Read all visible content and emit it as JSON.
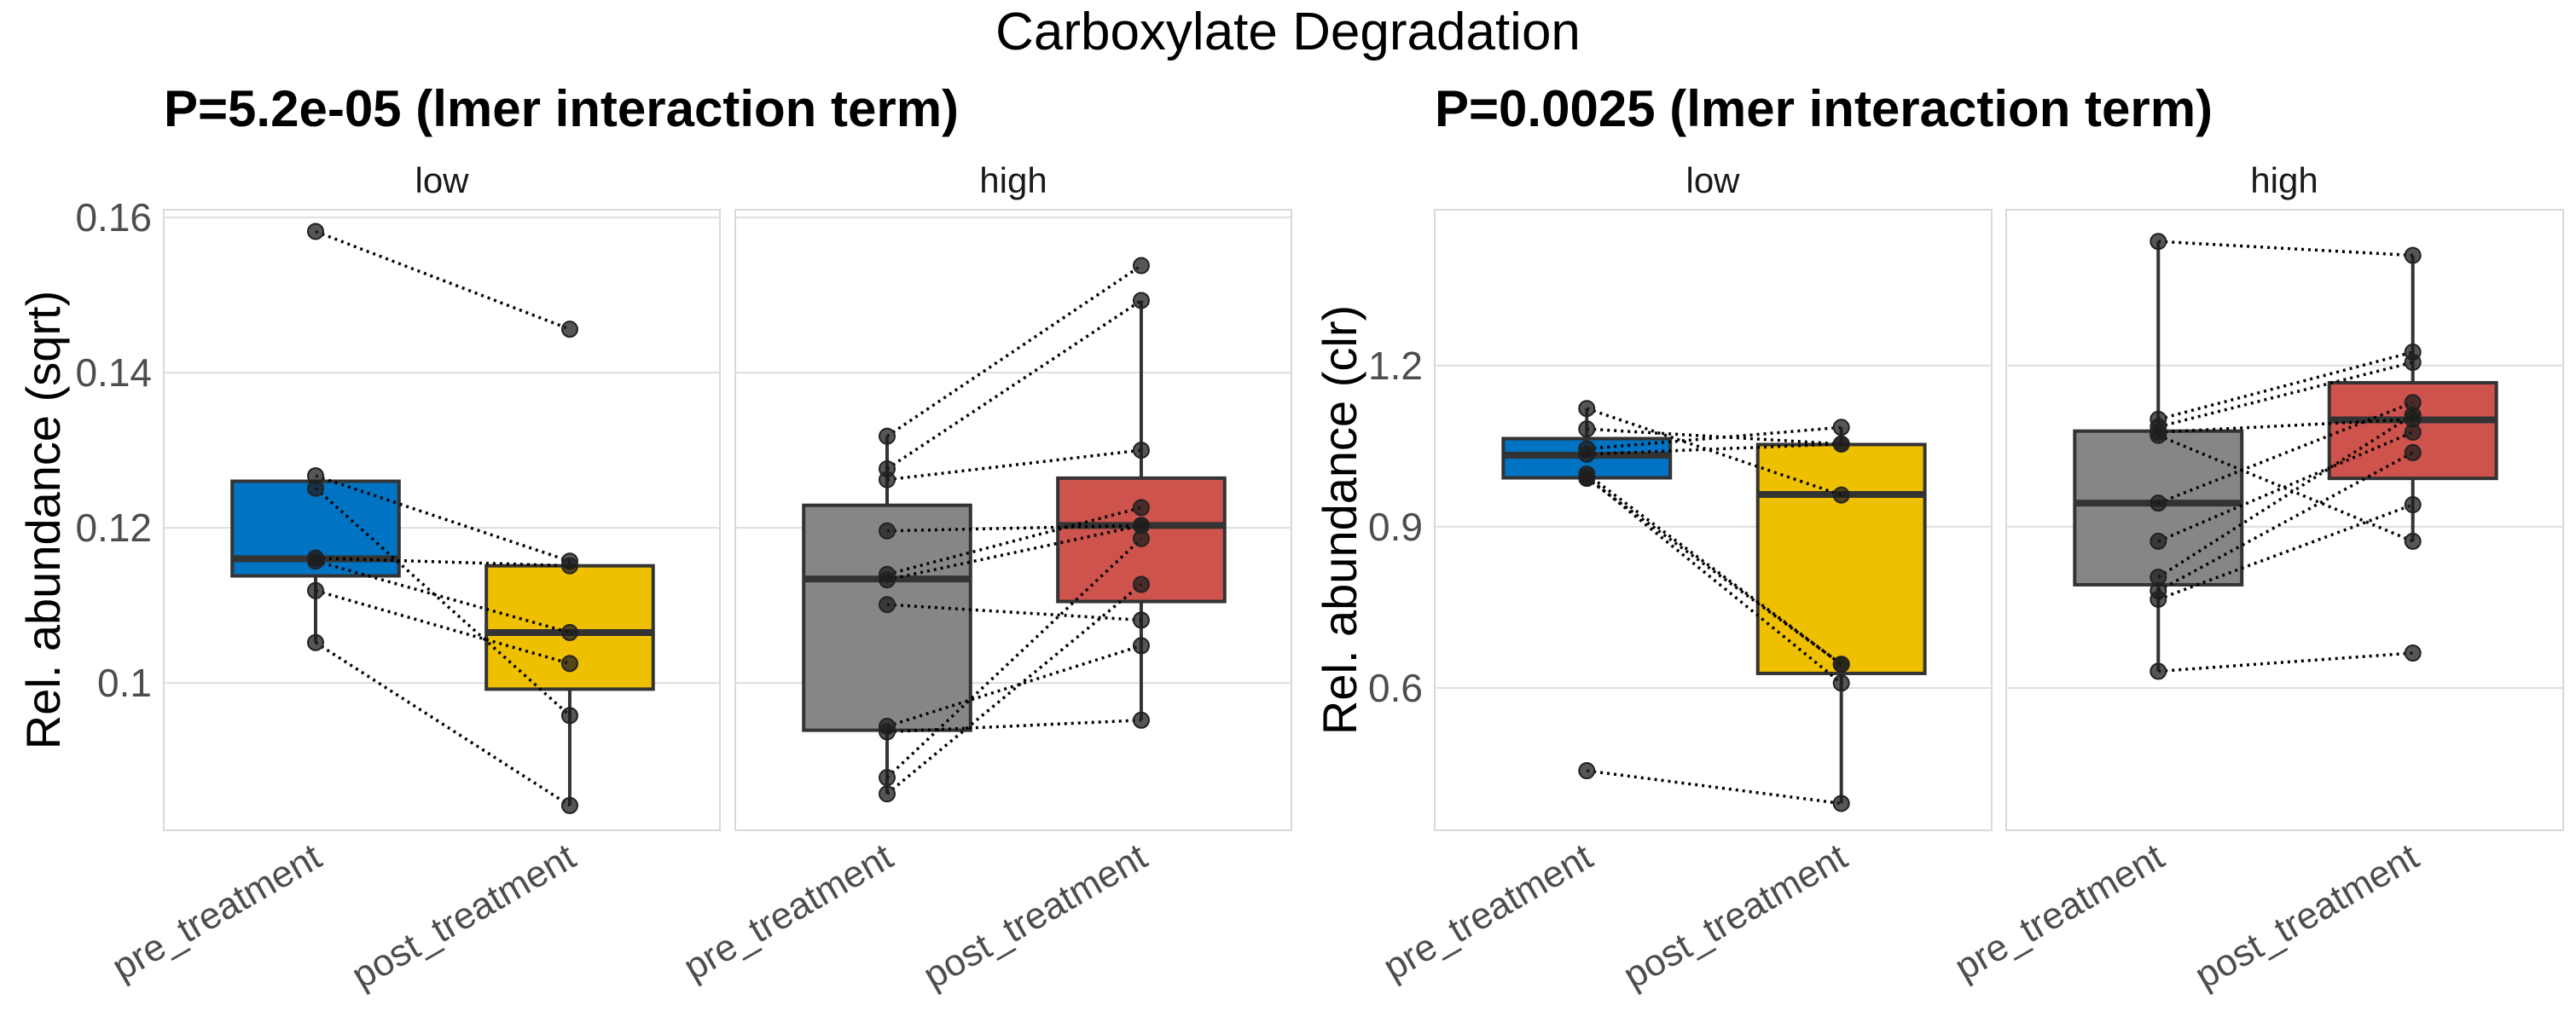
{
  "chart_data": {
    "title": "Carboxylate Degradation",
    "charts": [
      {
        "type": "box",
        "subtitle": "P=5.2e-05 (lmer interaction term)",
        "ylabel": "Rel. abundance (sqrt)",
        "ylim": [
          0.081,
          0.161
        ],
        "yticks": [
          0.16,
          0.14,
          0.12,
          0.1
        ],
        "ytick_labels": [
          "0.16",
          "0.14",
          "0.12",
          "0.1"
        ],
        "grid": true,
        "facets": [
          {
            "label": "low",
            "categories": [
              "pre_treatment",
              "post_treatment"
            ],
            "colors": [
              "#0073C2",
              "#EFC000"
            ],
            "boxes": [
              {
                "q1": 0.1138,
                "median": 0.116,
                "q3": 0.126,
                "whisker_low": 0.1052,
                "whisker_high": 0.126
              },
              {
                "q1": 0.0992,
                "median": 0.1065,
                "q3": 0.1151,
                "whisker_low": 0.0842,
                "whisker_high": 0.1157
              }
            ],
            "pairs": [
              [
                0.1582,
                0.1456
              ],
              [
                0.1267,
                0.1157
              ],
              [
                0.1251,
                0.0958
              ],
              [
                0.1161,
                0.1151
              ],
              [
                0.1157,
                0.1065
              ],
              [
                0.1119,
                0.1025
              ],
              [
                0.1052,
                0.0842
              ]
            ]
          },
          {
            "label": "high",
            "categories": [
              "pre_treatment",
              "post_treatment"
            ],
            "colors": [
              "#868686",
              "#CD534C"
            ],
            "boxes": [
              {
                "q1": 0.0939,
                "median": 0.1134,
                "q3": 0.1229,
                "whisker_low": 0.0857,
                "whisker_high": 0.1318
              },
              {
                "q1": 0.1105,
                "median": 0.1203,
                "q3": 0.1264,
                "whisker_low": 0.0952,
                "whisker_high": 0.1493
              }
            ],
            "pairs": [
              [
                0.1318,
                0.1538
              ],
              [
                0.1276,
                0.1493
              ],
              [
                0.1262,
                0.13
              ],
              [
                0.1196,
                0.1203
              ],
              [
                0.114,
                0.1226
              ],
              [
                0.1133,
                0.1203
              ],
              [
                0.1101,
                0.1081
              ],
              [
                0.0944,
                0.1048
              ],
              [
                0.0937,
                0.0952
              ],
              [
                0.0878,
                0.1186
              ],
              [
                0.0857,
                0.1127
              ]
            ]
          }
        ]
      },
      {
        "type": "box",
        "subtitle": "P=0.0025 (lmer interaction term)",
        "ylabel": "Rel. abundance (clr)",
        "ylim": [
          0.335,
          1.49
        ],
        "yticks": [
          1.2,
          0.9,
          0.6
        ],
        "ytick_labels": [
          "1.2",
          "0.9",
          "0.6"
        ],
        "grid": true,
        "facets": [
          {
            "label": "low",
            "categories": [
              "pre_treatment",
              "post_treatment"
            ],
            "colors": [
              "#0073C2",
              "#EFC000"
            ],
            "boxes": [
              {
                "q1": 0.991,
                "median": 1.033,
                "q3": 1.064,
                "whisker_low": 0.99,
                "whisker_high": 1.12
              },
              {
                "q1": 0.627,
                "median": 0.96,
                "q3": 1.053,
                "whisker_low": 0.385,
                "whisker_high": 1.085
              }
            ],
            "pairs": [
              [
                1.12,
                0.959
              ],
              [
                1.082,
                1.054
              ],
              [
                1.045,
                1.085
              ],
              [
                1.035,
                1.054
              ],
              [
                0.998,
                0.644
              ],
              [
                0.993,
                0.609
              ],
              [
                0.99,
                0.644
              ],
              [
                0.446,
                0.385
              ]
            ]
          },
          {
            "label": "high",
            "categories": [
              "pre_treatment",
              "post_treatment"
            ],
            "colors": [
              "#868686",
              "#CD534C"
            ],
            "boxes": [
              {
                "q1": 0.792,
                "median": 0.944,
                "q3": 1.078,
                "whisker_low": 0.631,
                "whisker_high": 1.431
              },
              {
                "q1": 0.99,
                "median": 1.099,
                "q3": 1.168,
                "whisker_low": 0.873,
                "whisker_high": 1.405
              }
            ],
            "pairs": [
              [
                1.431,
                1.405
              ],
              [
                1.1,
                1.225
              ],
              [
                1.086,
                1.206
              ],
              [
                1.076,
                1.1
              ],
              [
                1.07,
                0.873
              ],
              [
                0.944,
                1.131
              ],
              [
                0.873,
                1.076
              ],
              [
                0.806,
                1.108
              ],
              [
                0.781,
                1.038
              ],
              [
                0.765,
                0.941
              ],
              [
                0.631,
                0.665
              ]
            ]
          }
        ]
      }
    ]
  }
}
